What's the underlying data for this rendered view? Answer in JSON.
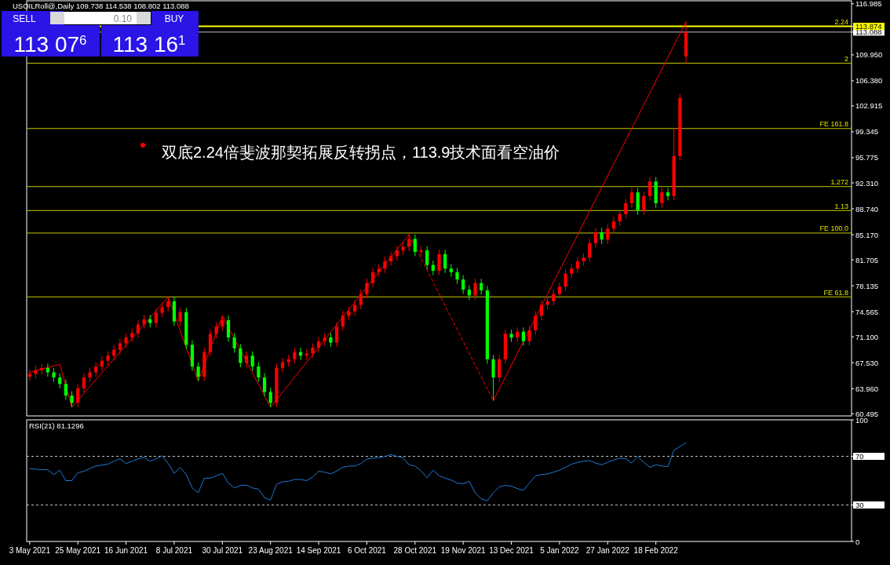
{
  "chart_data": [
    {
      "type": "candlestick",
      "title": "USOILRoll@,Daily 109.738 114.538 108.802 113.088",
      "categories": [
        null,
        null,
        null,
        null,
        null,
        null,
        null,
        null,
        null,
        null,
        null,
        null,
        null,
        null,
        null,
        null,
        null,
        null,
        null,
        null,
        null,
        null,
        null,
        null,
        null,
        null,
        null,
        null,
        null,
        null,
        null,
        null,
        null,
        null,
        null,
        null,
        null,
        null,
        null,
        null,
        null,
        null,
        null,
        null,
        null,
        null,
        null,
        null,
        null,
        null,
        null,
        null,
        null,
        null,
        null,
        null,
        null,
        null,
        null,
        null,
        null,
        null,
        null,
        null,
        null,
        null,
        null,
        null,
        null,
        null,
        null,
        null,
        null,
        null,
        null,
        null,
        null,
        null,
        null,
        null,
        null,
        null,
        null,
        null,
        null,
        null,
        null,
        null,
        null,
        null,
        null,
        null,
        null,
        null,
        null,
        null,
        null,
        null,
        null,
        null,
        null,
        null,
        null,
        null,
        null,
        null,
        null,
        null,
        null,
        null,
        null,
        null,
        null,
        null,
        null,
        null,
        null,
        null,
        null,
        null,
        null,
        null,
        null,
        null,
        null,
        null,
        null,
        null,
        null,
        null,
        null,
        null,
        null,
        null,
        null,
        null,
        null
      ],
      "ohlc": [
        [
          65.6,
          66.6,
          65.0,
          66.0
        ],
        [
          66.0,
          67.1,
          65.4,
          66.5
        ],
        [
          66.5,
          67.4,
          65.9,
          66.8
        ],
        [
          66.8,
          67.4,
          65.6,
          66.2
        ],
        [
          66.2,
          66.8,
          64.9,
          65.5
        ],
        [
          65.5,
          66.1,
          64.0,
          64.6
        ],
        [
          64.6,
          65.2,
          62.4,
          63.0
        ],
        [
          63.0,
          63.6,
          61.4,
          62.0
        ],
        [
          62.0,
          64.6,
          61.4,
          64.0
        ],
        [
          64.0,
          66.1,
          63.4,
          65.5
        ],
        [
          65.5,
          66.8,
          64.9,
          66.2
        ],
        [
          66.2,
          67.6,
          65.6,
          67.0
        ],
        [
          67.0,
          68.4,
          66.4,
          67.8
        ],
        [
          67.8,
          69.1,
          67.2,
          68.5
        ],
        [
          68.5,
          69.9,
          67.9,
          69.3
        ],
        [
          69.3,
          70.8,
          68.7,
          70.2
        ],
        [
          70.2,
          71.6,
          69.6,
          71.0
        ],
        [
          71.0,
          72.2,
          70.4,
          71.6
        ],
        [
          71.6,
          73.4,
          71.0,
          72.8
        ],
        [
          72.8,
          74.1,
          72.2,
          73.5
        ],
        [
          73.5,
          74.1,
          72.4,
          73.0
        ],
        [
          73.0,
          75.0,
          72.4,
          74.4
        ],
        [
          74.4,
          75.8,
          73.8,
          75.2
        ],
        [
          75.2,
          76.6,
          74.6,
          76.0
        ],
        [
          76.0,
          76.6,
          72.6,
          73.2
        ],
        [
          73.2,
          75.1,
          72.6,
          74.5
        ],
        [
          74.5,
          75.1,
          69.4,
          70.0
        ],
        [
          70.0,
          70.6,
          66.4,
          67.0
        ],
        [
          67.0,
          67.6,
          65.0,
          65.6
        ],
        [
          65.6,
          69.6,
          65.0,
          69.0
        ],
        [
          69.0,
          72.1,
          68.4,
          71.5
        ],
        [
          71.5,
          73.1,
          70.9,
          72.5
        ],
        [
          72.5,
          74.0,
          71.9,
          73.4
        ],
        [
          73.4,
          74.0,
          70.4,
          71.0
        ],
        [
          71.0,
          71.6,
          68.9,
          69.5
        ],
        [
          69.5,
          70.1,
          66.9,
          67.5
        ],
        [
          67.5,
          69.1,
          66.9,
          68.5
        ],
        [
          68.5,
          69.1,
          66.4,
          67.0
        ],
        [
          67.0,
          67.6,
          64.9,
          65.5
        ],
        [
          65.5,
          66.1,
          62.9,
          63.5
        ],
        [
          63.5,
          64.1,
          61.4,
          62.0
        ],
        [
          62.0,
          67.4,
          61.4,
          66.8
        ],
        [
          66.8,
          68.2,
          66.2,
          67.6
        ],
        [
          67.6,
          68.6,
          67.0,
          68.0
        ],
        [
          68.0,
          69.6,
          67.4,
          69.0
        ],
        [
          69.0,
          69.6,
          67.9,
          68.5
        ],
        [
          68.5,
          69.4,
          67.9,
          68.8
        ],
        [
          68.8,
          70.2,
          68.2,
          69.6
        ],
        [
          69.6,
          71.1,
          69.0,
          70.5
        ],
        [
          70.5,
          71.6,
          69.9,
          71.0
        ],
        [
          71.0,
          71.6,
          69.7,
          70.3
        ],
        [
          70.3,
          73.1,
          69.7,
          72.5
        ],
        [
          72.5,
          74.6,
          71.9,
          74.0
        ],
        [
          74.0,
          75.2,
          73.4,
          74.6
        ],
        [
          74.6,
          76.1,
          74.0,
          75.5
        ],
        [
          75.5,
          77.6,
          74.9,
          77.0
        ],
        [
          77.0,
          79.1,
          76.4,
          78.5
        ],
        [
          78.5,
          80.6,
          77.9,
          80.0
        ],
        [
          80.0,
          81.1,
          79.4,
          80.5
        ],
        [
          80.5,
          82.1,
          79.9,
          81.5
        ],
        [
          81.5,
          82.8,
          80.9,
          82.2
        ],
        [
          82.2,
          83.6,
          81.6,
          83.0
        ],
        [
          83.0,
          84.1,
          82.4,
          83.5
        ],
        [
          83.5,
          85.2,
          82.9,
          84.6
        ],
        [
          84.6,
          85.2,
          82.2,
          82.8
        ],
        [
          82.8,
          83.6,
          82.2,
          83.0
        ],
        [
          83.0,
          83.6,
          80.4,
          81.0
        ],
        [
          81.0,
          81.6,
          79.6,
          80.2
        ],
        [
          80.2,
          83.1,
          79.6,
          82.5
        ],
        [
          82.5,
          83.1,
          79.9,
          80.5
        ],
        [
          80.5,
          81.1,
          79.4,
          80.0
        ],
        [
          80.0,
          80.6,
          78.4,
          79.0
        ],
        [
          79.0,
          79.6,
          77.0,
          77.6
        ],
        [
          77.6,
          78.2,
          76.2,
          76.8
        ],
        [
          76.8,
          79.1,
          76.2,
          78.5
        ],
        [
          78.5,
          79.1,
          76.9,
          77.5
        ],
        [
          77.5,
          78.1,
          67.4,
          68.0
        ],
        [
          68.0,
          68.6,
          62.3,
          65.5
        ],
        [
          65.5,
          68.6,
          64.9,
          68.0
        ],
        [
          68.0,
          72.1,
          67.4,
          71.5
        ],
        [
          71.5,
          72.1,
          70.4,
          71.0
        ],
        [
          71.0,
          72.4,
          70.4,
          71.8
        ],
        [
          71.8,
          72.4,
          69.9,
          70.5
        ],
        [
          70.5,
          72.6,
          69.9,
          72.0
        ],
        [
          72.0,
          74.6,
          71.4,
          74.0
        ],
        [
          74.0,
          76.1,
          73.4,
          75.5
        ],
        [
          75.5,
          76.6,
          74.9,
          76.0
        ],
        [
          76.0,
          77.6,
          75.4,
          77.0
        ],
        [
          77.0,
          78.6,
          76.4,
          78.0
        ],
        [
          78.0,
          80.4,
          77.4,
          79.8
        ],
        [
          79.8,
          81.1,
          79.2,
          80.5
        ],
        [
          80.5,
          82.1,
          79.9,
          81.5
        ],
        [
          81.5,
          82.6,
          80.9,
          82.0
        ],
        [
          82.0,
          84.6,
          81.4,
          84.0
        ],
        [
          84.0,
          86.1,
          83.4,
          85.5
        ],
        [
          85.5,
          86.1,
          83.9,
          84.5
        ],
        [
          84.5,
          86.6,
          83.9,
          86.0
        ],
        [
          86.0,
          87.6,
          85.4,
          87.0
        ],
        [
          87.0,
          88.6,
          86.4,
          88.0
        ],
        [
          88.0,
          90.1,
          87.4,
          89.5
        ],
        [
          89.5,
          91.6,
          88.9,
          91.0
        ],
        [
          91.0,
          91.6,
          87.9,
          88.5
        ],
        [
          88.5,
          91.1,
          87.9,
          90.5
        ],
        [
          90.5,
          93.1,
          89.9,
          92.5
        ],
        [
          92.5,
          93.1,
          88.9,
          89.5
        ],
        [
          89.5,
          91.6,
          88.9,
          91.0
        ],
        [
          91.0,
          91.6,
          89.9,
          90.5
        ],
        [
          90.5,
          99.9,
          89.9,
          96.0
        ],
        [
          96.0,
          104.6,
          95.4,
          104.0
        ],
        [
          109.738,
          114.538,
          108.802,
          113.088
        ],
        null,
        null,
        null,
        null,
        null,
        null,
        null,
        null,
        null,
        null,
        null,
        null,
        null,
        null,
        null,
        null,
        null,
        null,
        null,
        null,
        null,
        null,
        null,
        null,
        null,
        null,
        null
      ],
      "series": [
        {
          "type": "line",
          "color": "#ff0000",
          "line_style": "solid",
          "values": [
            66.2,
            null,
            null,
            null,
            null,
            67.3,
            null,
            61.4,
            null,
            null,
            null,
            null,
            null,
            null,
            null,
            null,
            null,
            null,
            null,
            null,
            null,
            null,
            null,
            76.6,
            null,
            null,
            null,
            null,
            65.0,
            null,
            null,
            null,
            74.0,
            null,
            null,
            null,
            null,
            null,
            null,
            null,
            61.4,
            null,
            null,
            null,
            null,
            null,
            null,
            null,
            null,
            null,
            null,
            null,
            null,
            null,
            null,
            null,
            null,
            null,
            null,
            null,
            null,
            null,
            null,
            85.2,
            null,
            null,
            null,
            null,
            null,
            null,
            null,
            null,
            null,
            null,
            null,
            null,
            null,
            null,
            null,
            null,
            null,
            null,
            null,
            null,
            null,
            null,
            null,
            null,
            null,
            null,
            null,
            null,
            null,
            null,
            null,
            null,
            null,
            null,
            null,
            null,
            null,
            null,
            null,
            null,
            null,
            null,
            null,
            null,
            null,
            null,
            null,
            null,
            null,
            null,
            null,
            null,
            null,
            null,
            null,
            null,
            null,
            null,
            null,
            null,
            null,
            null,
            null,
            null,
            null,
            null,
            null,
            null,
            null,
            null,
            null,
            null,
            null
          ]
        },
        {
          "type": "line",
          "color": "#ff0000",
          "line_style": "dashed",
          "values": [
            null,
            null,
            null,
            null,
            null,
            null,
            null,
            null,
            null,
            null,
            null,
            null,
            null,
            null,
            null,
            null,
            null,
            null,
            null,
            null,
            null,
            null,
            null,
            null,
            null,
            null,
            null,
            null,
            null,
            null,
            null,
            null,
            null,
            null,
            null,
            null,
            null,
            null,
            null,
            null,
            null,
            null,
            null,
            null,
            null,
            null,
            null,
            null,
            null,
            null,
            null,
            null,
            null,
            null,
            null,
            null,
            null,
            null,
            null,
            null,
            null,
            null,
            null,
            85.2,
            null,
            null,
            null,
            null,
            null,
            null,
            null,
            null,
            null,
            null,
            null,
            null,
            null,
            62.3,
            null,
            null,
            null,
            null,
            null,
            null,
            null,
            null,
            null,
            null,
            null,
            null,
            null,
            null,
            null,
            null,
            null,
            null,
            null,
            null,
            null,
            null,
            null,
            null,
            null,
            null,
            null,
            null,
            null,
            null,
            null,
            null,
            null,
            null,
            null,
            null,
            null,
            null,
            null,
            null,
            null,
            null,
            null,
            null,
            null,
            null,
            null,
            null,
            null,
            null,
            null,
            null,
            null,
            null,
            null,
            null,
            null,
            null,
            null
          ]
        },
        {
          "type": "line",
          "color": "#ff0000",
          "line_style": "solid",
          "values": [
            null,
            null,
            null,
            null,
            null,
            null,
            null,
            null,
            null,
            null,
            null,
            null,
            null,
            null,
            null,
            null,
            null,
            null,
            null,
            null,
            null,
            null,
            null,
            null,
            null,
            null,
            null,
            null,
            null,
            null,
            null,
            null,
            null,
            null,
            null,
            null,
            null,
            null,
            null,
            null,
            null,
            null,
            null,
            null,
            null,
            null,
            null,
            null,
            null,
            null,
            null,
            null,
            null,
            null,
            null,
            null,
            null,
            null,
            null,
            null,
            null,
            null,
            null,
            null,
            null,
            null,
            null,
            null,
            null,
            null,
            null,
            null,
            null,
            null,
            null,
            null,
            null,
            62.3,
            null,
            null,
            null,
            null,
            null,
            null,
            null,
            null,
            null,
            null,
            null,
            null,
            null,
            null,
            null,
            null,
            null,
            null,
            null,
            null,
            null,
            null,
            null,
            null,
            null,
            null,
            null,
            null,
            null,
            null,
            null,
            114.5,
            null,
            null,
            null,
            null,
            null,
            null,
            null,
            null,
            null,
            null,
            null,
            null,
            null,
            null,
            null,
            null,
            null,
            null,
            null,
            null,
            null,
            null,
            null,
            null,
            null,
            null,
            null
          ]
        }
      ],
      "ylim": [
        60.2,
        117.4
      ],
      "yticks": [
        {
          "value": 60.495,
          "label": "60.495"
        },
        {
          "value": 63.96,
          "label": "63.960"
        },
        {
          "value": 67.53,
          "label": "67.530"
        },
        {
          "value": 71.1,
          "label": "71.100"
        },
        {
          "value": 74.565,
          "label": "74.565"
        },
        {
          "value": 78.135,
          "label": "78.135"
        },
        {
          "value": 81.705,
          "label": "81.705"
        },
        {
          "value": 85.17,
          "label": "85.170"
        },
        {
          "value": 88.74,
          "label": "88.740"
        },
        {
          "value": 92.31,
          "label": "92.310"
        },
        {
          "value": 95.775,
          "label": "95.775"
        },
        {
          "value": 99.345,
          "label": "99.345"
        },
        {
          "value": 102.915,
          "label": "102.915"
        },
        {
          "value": 106.38,
          "label": "106.380"
        },
        {
          "value": 109.95,
          "label": "109.950"
        },
        {
          "value": 113.088,
          "label": "113.088"
        },
        {
          "value": 113.874,
          "label": "113.874"
        },
        {
          "value": 116.985,
          "label": "116.985"
        }
      ],
      "ref_lines": [
        {
          "axis": "y",
          "value": 113.874,
          "color": "#ffff00"
        },
        {
          "axis": "y",
          "value": 113.088,
          "color": "#c0c0c0"
        },
        {
          "axis": "y",
          "value": 108.8,
          "color": "#c8c800"
        },
        {
          "axis": "y",
          "value": 99.8,
          "color": "#c8c800"
        },
        {
          "axis": "y",
          "value": 91.8,
          "color": "#c8c800"
        },
        {
          "axis": "y",
          "value": 88.5,
          "color": "#c8c800"
        },
        {
          "axis": "y",
          "value": 85.4,
          "color": "#c8c800"
        },
        {
          "axis": "y",
          "value": 76.6,
          "color": "#c8c800"
        }
      ],
      "annotations": [
        "双底2.24倍斐波那契拓展反转拐点，113.9技术面看空油价",
        "SELL",
        "0.10",
        "BUY",
        "113 07$^{6}$",
        "113 16$^{1}$",
        {
          "text": "2.24",
          "y": 113.874
        },
        {
          "text": "2",
          "y": 108.8
        },
        {
          "text": "FE 161.8",
          "y": 99.8
        },
        {
          "text": "1.272",
          "y": 91.8
        },
        {
          "text": "1.13",
          "y": 88.5
        },
        {
          "text": "FE 100.0",
          "y": 85.4
        },
        {
          "text": "FE 61.8",
          "y": 76.6
        }
      ],
      "tick_labels": "y"
    },
    {
      "type": "line",
      "title": "RSI(21) 81.1296",
      "categories": [
        "3 May 2021",
        null,
        null,
        null,
        null,
        null,
        null,
        null,
        "25 May 2021",
        null,
        null,
        null,
        null,
        null,
        null,
        null,
        "16 Jun 2021",
        null,
        null,
        null,
        null,
        null,
        null,
        null,
        "8 Jul 2021",
        null,
        null,
        null,
        null,
        null,
        null,
        null,
        "30 Jul 2021",
        null,
        null,
        null,
        null,
        null,
        null,
        null,
        "23 Aug 2021",
        null,
        null,
        null,
        null,
        null,
        null,
        null,
        "14 Sep 2021",
        null,
        null,
        null,
        null,
        null,
        null,
        null,
        "6 Oct 2021",
        null,
        null,
        null,
        null,
        null,
        null,
        null,
        "28 Oct 2021",
        null,
        null,
        null,
        null,
        null,
        null,
        null,
        "19 Nov 2021",
        null,
        null,
        null,
        null,
        null,
        null,
        null,
        "13 Dec 2021",
        null,
        null,
        null,
        null,
        null,
        null,
        null,
        "5 Jan 2022",
        null,
        null,
        null,
        null,
        null,
        null,
        null,
        "27 Jan 2022",
        null,
        null,
        null,
        null,
        null,
        null,
        null,
        "18 Feb 2022",
        null,
        null,
        null,
        null,
        null,
        null,
        null,
        null,
        null,
        null,
        null,
        null,
        null,
        null,
        null,
        null,
        null,
        null,
        null,
        null,
        null,
        null,
        null,
        null,
        null,
        null,
        null,
        null,
        null,
        null,
        null,
        null
      ],
      "series": [
        {
          "color": "#1e78d2",
          "values": [
            60,
            59.5,
            59,
            59,
            55,
            58.6,
            50,
            50,
            56.5,
            57.7,
            60,
            62,
            62.8,
            63.5,
            66,
            68,
            64,
            66,
            68,
            69,
            66,
            68,
            70.5,
            64,
            56,
            61,
            55,
            44,
            40,
            52,
            52,
            54,
            56,
            48,
            44,
            46,
            46.4,
            44,
            43,
            36,
            34,
            47,
            49,
            49.5,
            51,
            51,
            50,
            53,
            57.7,
            57,
            55.5,
            58,
            61,
            62,
            62,
            64,
            67.7,
            68.5,
            69,
            70,
            71.4,
            70,
            69,
            63,
            62,
            58,
            52.3,
            58.6,
            54,
            52,
            50.5,
            48,
            47.5,
            49.5,
            40,
            35,
            33.5,
            40,
            45,
            46,
            45.5,
            43.5,
            42,
            48,
            54,
            55,
            55.5,
            57,
            58.6,
            61,
            63.5,
            65,
            66,
            66.5,
            64.5,
            63,
            65,
            67,
            68.5,
            68,
            64.5,
            70,
            65,
            61,
            63,
            62,
            61.5,
            75,
            78,
            81.1,
            null,
            null,
            null,
            null,
            null,
            null,
            null,
            null,
            null,
            null,
            null,
            null,
            null,
            null,
            null,
            null,
            null,
            null,
            null,
            null,
            null,
            null,
            null,
            null,
            null,
            null,
            null
          ]
        }
      ],
      "ylim": [
        0,
        100
      ],
      "yticks": [
        0,
        30,
        70,
        100
      ],
      "ref_lines": [
        {
          "axis": "y",
          "value": 30,
          "color": "#c0c0c0",
          "line_style": "dashed"
        },
        {
          "axis": "y",
          "value": 70,
          "color": "#c0c0c0",
          "line_style": "dashed"
        }
      ]
    }
  ]
}
